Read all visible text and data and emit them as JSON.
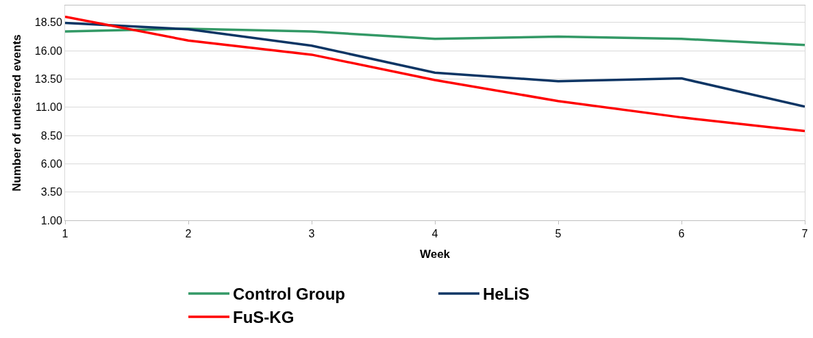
{
  "chart_data": {
    "type": "line",
    "xlabel": "Week",
    "ylabel": "Number of undesired events",
    "x": [
      1,
      2,
      3,
      4,
      5,
      6,
      7
    ],
    "series": [
      {
        "name": "Control Group",
        "color": "#339966",
        "values": [
          17.7,
          17.95,
          17.7,
          17.05,
          17.25,
          17.05,
          16.5
        ]
      },
      {
        "name": "HeLiS",
        "color": "#0d3564",
        "values": [
          18.45,
          17.9,
          16.45,
          14.05,
          13.3,
          13.55,
          11.05
        ]
      },
      {
        "name": "FuS-KG",
        "color": "#ff0000",
        "values": [
          19.0,
          16.9,
          15.65,
          13.4,
          11.55,
          10.1,
          8.9
        ]
      }
    ],
    "xlim": [
      1,
      7
    ],
    "xticks": [
      1,
      2,
      3,
      4,
      5,
      6,
      7
    ],
    "ylim": [
      1,
      20
    ],
    "yticks": [
      {
        "value": 1,
        "label": "1.00"
      },
      {
        "value": 3.5,
        "label": "3.50"
      },
      {
        "value": 6,
        "label": "6.00"
      },
      {
        "value": 8.5,
        "label": "8.50"
      },
      {
        "value": 11,
        "label": "11.00"
      },
      {
        "value": 13.5,
        "label": "13.50"
      },
      {
        "value": 16,
        "label": "16.00"
      },
      {
        "value": 18.5,
        "label": "18.50"
      }
    ],
    "grid": "y",
    "legend": "bottom",
    "marker": "none",
    "line_style": "solid"
  }
}
